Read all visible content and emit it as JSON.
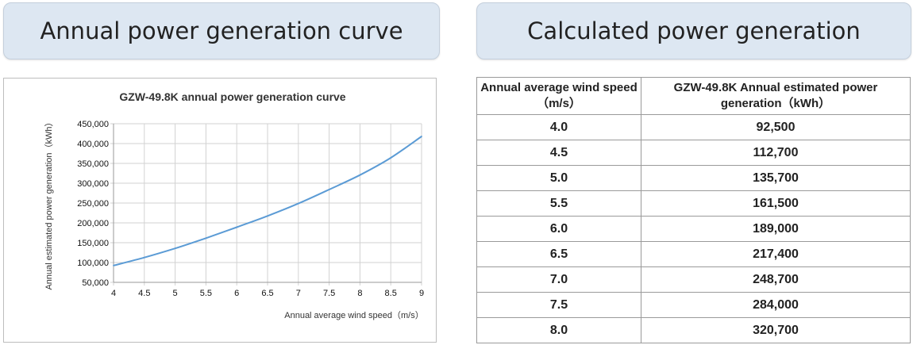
{
  "headers": {
    "left": "Annual power generation curve",
    "right": "Calculated power generation"
  },
  "chart_data": {
    "type": "line",
    "title": "GZW-49.8K annual power generation curve",
    "xlabel": "Annual average wind speed（m/s）",
    "ylabel": "Annual estimated power generation（kWh）",
    "xlim": [
      4,
      9
    ],
    "ylim": [
      50000,
      450000
    ],
    "xticks": [
      "4",
      "4.5",
      "5",
      "5.5",
      "6",
      "6.5",
      "7",
      "7.5",
      "8",
      "8.5",
      "9"
    ],
    "yticks": [
      "50,000",
      "100,000",
      "150,000",
      "200,000",
      "250,000",
      "300,000",
      "350,000",
      "400,000",
      "450,000"
    ],
    "grid": true,
    "series_color": "#5b9bd5",
    "x": [
      4.0,
      4.5,
      5.0,
      5.5,
      6.0,
      6.5,
      7.0,
      7.5,
      8.0,
      8.5,
      9.0
    ],
    "values": [
      92500,
      112700,
      135700,
      161500,
      189000,
      217400,
      248700,
      284000,
      320700,
      364000,
      418000
    ]
  },
  "table": {
    "columns": [
      "Annual average wind speed（m/s）",
      "GZW-49.8K Annual estimated power generation（kWh）"
    ],
    "rows": [
      [
        "4.0",
        "92,500"
      ],
      [
        "4.5",
        "112,700"
      ],
      [
        "5.0",
        "135,700"
      ],
      [
        "5.5",
        "161,500"
      ],
      [
        "6.0",
        "189,000"
      ],
      [
        "6.5",
        "217,400"
      ],
      [
        "7.0",
        "248,700"
      ],
      [
        "7.5",
        "284,000"
      ],
      [
        "8.0",
        "320,700"
      ]
    ]
  }
}
